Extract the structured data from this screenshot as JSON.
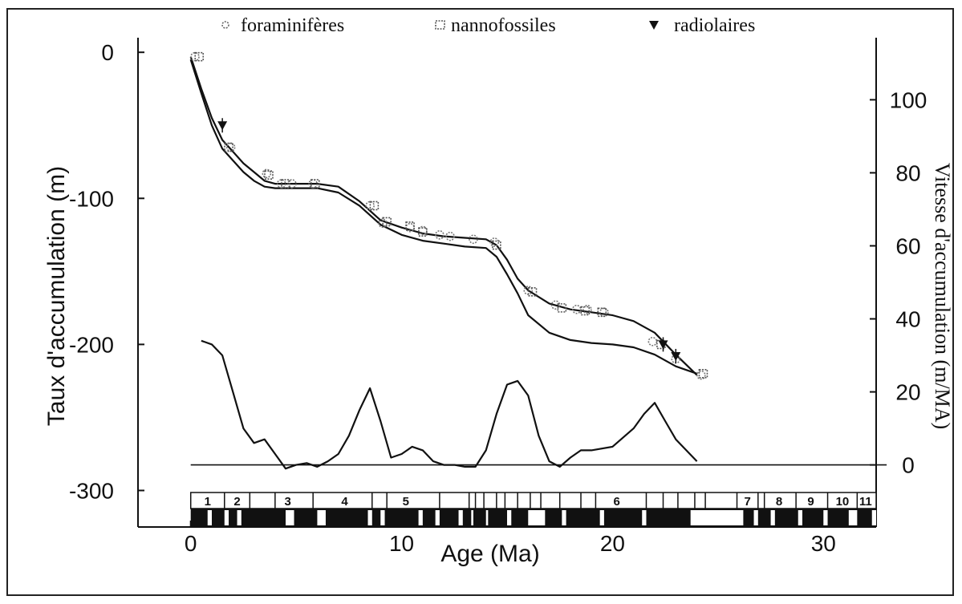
{
  "chart_data": {
    "type": "line",
    "legend": {
      "placement": "top",
      "entries": [
        {
          "label": "foraminifères",
          "marker": "small-dotted-circle"
        },
        {
          "label": "nannofossiles",
          "marker": "dotted-square"
        },
        {
          "label": "radiolaires",
          "marker": "filled-down-triangle"
        }
      ]
    },
    "xlabel": "Age (Ma)",
    "ylabel_left": "Taux d'accumulation (m)",
    "ylabel_right": "Vitesse d'accumulation (m/MA)",
    "xlim": [
      -2.5,
      32.5
    ],
    "ylim_left": [
      -325,
      10
    ],
    "ylim_right": [
      -17,
      117
    ],
    "x_ticks": [
      0,
      10,
      20,
      30
    ],
    "y_ticks_left": [
      0,
      -100,
      -200,
      -300
    ],
    "y_ticks_right": [
      100,
      80,
      60,
      40,
      20,
      0
    ],
    "grid": false,
    "series": [
      {
        "role": "depth-age-upper",
        "axis": "left",
        "x": [
          0,
          0.5,
          1.0,
          1.5,
          2.0,
          2.5,
          3.0,
          3.5,
          4.0,
          4.5,
          5.0,
          6.0,
          7.0,
          8.0,
          9.0,
          10.0,
          11.0,
          12.0,
          13.0,
          14.0,
          14.5,
          15.0,
          15.5,
          16.0,
          17.0,
          18.0,
          19.0,
          20.0,
          21.0,
          22.0,
          23.0,
          24.0
        ],
        "y": [
          -3,
          -25,
          -45,
          -60,
          -68,
          -76,
          -82,
          -88,
          -90,
          -90,
          -90,
          -90,
          -92,
          -102,
          -115,
          -120,
          -124,
          -126,
          -127,
          -128,
          -132,
          -142,
          -155,
          -163,
          -172,
          -176,
          -178,
          -180,
          -184,
          -192,
          -207,
          -221
        ]
      },
      {
        "role": "depth-age-lower",
        "axis": "left",
        "x": [
          0,
          0.5,
          1.0,
          1.5,
          2.0,
          2.5,
          3.0,
          3.5,
          4.0,
          5.0,
          6.0,
          7.0,
          8.0,
          9.0,
          10.0,
          11.0,
          12.0,
          13.0,
          14.0,
          14.5,
          15.0,
          15.5,
          16.0,
          17.0,
          18.0,
          19.0,
          20.0,
          21.0,
          22.0,
          23.0,
          24.0
        ],
        "y": [
          -5,
          -28,
          -50,
          -66,
          -74,
          -82,
          -88,
          -92,
          -93,
          -93,
          -93,
          -96,
          -105,
          -118,
          -125,
          -129,
          -131,
          -133,
          -134,
          -140,
          -152,
          -165,
          -180,
          -192,
          -197,
          -199,
          -200,
          -202,
          -207,
          -215,
          -220
        ]
      },
      {
        "role": "accumulation-rate",
        "axis": "right",
        "x": [
          0.5,
          1.0,
          1.5,
          2.0,
          2.5,
          3.0,
          3.5,
          4.0,
          4.5,
          5.0,
          5.5,
          6.0,
          6.5,
          7.0,
          7.5,
          8.0,
          8.5,
          9.0,
          9.5,
          10.0,
          10.5,
          11.0,
          11.5,
          12.0,
          12.5,
          13.0,
          13.5,
          14.0,
          14.5,
          15.0,
          15.5,
          16.0,
          16.5,
          17.0,
          17.5,
          18.0,
          18.5,
          19.0,
          20.0,
          21.0,
          21.5,
          22.0,
          22.5,
          23.0,
          23.5,
          24.0
        ],
        "y": [
          34,
          33,
          30,
          20,
          10,
          6,
          7,
          3,
          -1,
          0,
          0.5,
          -0.5,
          1,
          3,
          8,
          15,
          21,
          12,
          2,
          3,
          5,
          4,
          1,
          0,
          0,
          -0.5,
          -0.5,
          4,
          14,
          22,
          23,
          19,
          8,
          1,
          -0.5,
          2,
          4,
          4,
          5,
          10,
          14,
          17,
          12,
          7,
          4,
          1
        ]
      },
      {
        "role": "zero-baseline",
        "axis": "right",
        "x": [
          0,
          33
        ],
        "y": [
          0,
          0
        ]
      }
    ],
    "markers": {
      "foraminiferes": {
        "x": [
          0.2,
          1.9,
          3.6,
          4.3,
          4.8,
          5.8,
          8.5,
          9.1,
          10.4,
          11.0,
          11.8,
          12.3,
          13.4,
          14.4,
          16.0,
          17.3,
          18.3,
          18.8,
          19.6,
          21.9,
          23.0,
          24.2
        ],
        "y": [
          -3,
          -65,
          -83,
          -90,
          -90,
          -90,
          -105,
          -117,
          -120,
          -122,
          -125,
          -126,
          -128,
          -130,
          -163,
          -173,
          -176,
          -176,
          -178,
          -198,
          -210,
          -221
        ]
      },
      "nannofossiles": {
        "x": [
          0.4,
          1.8,
          3.7,
          4.5,
          5.9,
          8.7,
          9.3,
          10.4,
          11.0,
          14.5,
          16.2,
          17.6,
          18.7,
          19.5,
          22.3,
          24.3
        ],
        "y": [
          -3,
          -65,
          -84,
          -90,
          -90,
          -105,
          -116,
          -119,
          -123,
          -132,
          -164,
          -175,
          -177,
          -178,
          -200,
          -220
        ]
      },
      "radiolaires": {
        "x": [
          1.5,
          22.4,
          23.0
        ],
        "y": [
          -50,
          -200,
          -208
        ]
      }
    },
    "chronozones": {
      "labels": [
        "1",
        "2",
        "3",
        "4",
        "5",
        "6",
        "7",
        "8",
        "9",
        "10",
        "11"
      ],
      "centers": [
        0.8,
        2.2,
        4.6,
        7.3,
        10.2,
        20.2,
        26.4,
        27.9,
        29.4,
        30.9,
        32.0
      ],
      "boundaries": [
        1.6,
        2.8,
        4.0,
        5.8,
        8.6,
        9.3,
        11.8,
        13.2,
        13.5,
        13.9,
        14.5,
        14.9,
        15.5,
        16.1,
        16.6,
        17.5,
        18.5,
        19.2,
        21.6,
        22.4,
        23.1,
        23.9,
        24.4,
        25.9,
        26.9,
        27.2,
        28.7,
        30.2,
        31.6
      ]
    },
    "magnetic_polarity": {
      "white_intervals": [
        [
          0.8,
          1.0
        ],
        [
          1.6,
          1.8
        ],
        [
          2.2,
          2.4
        ],
        [
          4.5,
          4.9
        ],
        [
          6.0,
          6.4
        ],
        [
          8.4,
          8.6
        ],
        [
          9.0,
          9.2
        ],
        [
          10.8,
          11.0
        ],
        [
          11.6,
          11.8
        ],
        [
          12.7,
          12.9
        ],
        [
          13.3,
          13.4
        ],
        [
          14.0,
          14.1
        ],
        [
          15.0,
          15.2
        ],
        [
          16.0,
          16.8
        ],
        [
          17.6,
          17.8
        ],
        [
          19.4,
          19.6
        ],
        [
          21.4,
          21.6
        ],
        [
          23.7,
          26.2
        ],
        [
          26.7,
          26.9
        ],
        [
          27.5,
          27.7
        ],
        [
          28.8,
          29.0
        ],
        [
          30.0,
          30.2
        ],
        [
          31.2,
          31.6
        ],
        [
          32.3,
          32.5
        ]
      ]
    }
  }
}
